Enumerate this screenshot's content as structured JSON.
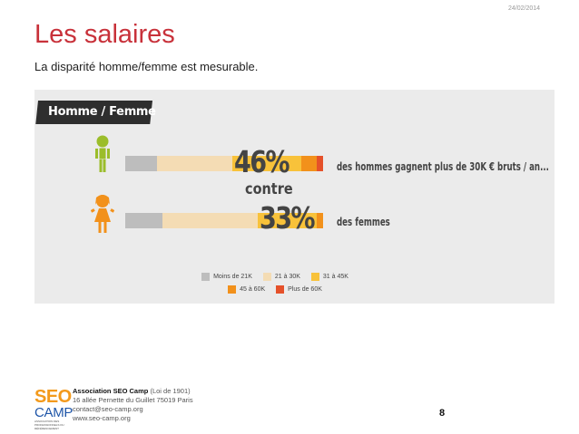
{
  "date": "24/02/2014",
  "title": "Les salaires",
  "subtitle": "La disparité homme/femme est mesurable.",
  "chart_data": {
    "type": "bar",
    "stacked": true,
    "title": "Homme / Femme",
    "categories": [
      "Hommes",
      "Femmes"
    ],
    "segment_colors": [
      "#bdbdbd",
      "#f4dcb4",
      "#f8c23a",
      "#f2911b",
      "#e5512a"
    ],
    "series": [
      {
        "name": "Moins de 21K",
        "values": [
          16,
          19
        ]
      },
      {
        "name": "21 à 30K",
        "values": [
          38,
          48
        ]
      },
      {
        "name": "31 à 45K",
        "values": [
          35,
          30
        ]
      },
      {
        "name": "45 à 60K",
        "values": [
          8,
          3
        ]
      },
      {
        "name": "Plus de 60K",
        "values": [
          3,
          0
        ]
      }
    ],
    "annotations": [
      {
        "big_value": "46%",
        "text": "des hommes gagnent plus de 30K € bruts / an..."
      },
      {
        "big_value": "33%",
        "text": "des femmes"
      }
    ],
    "connector": "contre",
    "legend": [
      {
        "label": "Moins de 21K",
        "color": "#bdbdbd"
      },
      {
        "label": "21 à 30K",
        "color": "#f4dcb4"
      },
      {
        "label": "31 à 45K",
        "color": "#f8c23a"
      },
      {
        "label": "45 à 60K",
        "color": "#f2911b"
      },
      {
        "label": "Plus de 60K",
        "color": "#e5512a"
      }
    ],
    "legend_placement": "bottom"
  },
  "icons": {
    "male": "male-figure-icon",
    "female": "female-figure-icon"
  },
  "colors": {
    "title": "#c8313a",
    "male_icon": "#9bbd2a",
    "female_icon": "#f2911b"
  },
  "footer": {
    "logo_seo": "SEO",
    "logo_camp": "CAMP",
    "logo_tagline": "ASSOCIATION DES PROFESSIONNELS DU RÉFÉRENCEMENT",
    "org_name": "Association SEO Camp",
    "org_status": " (Loi de 1901)",
    "address": "16 allée Pernette du Guillet 75019 Paris",
    "email": "contact@seo-camp.org",
    "website": "www.seo-camp.org"
  },
  "page_number": "8"
}
